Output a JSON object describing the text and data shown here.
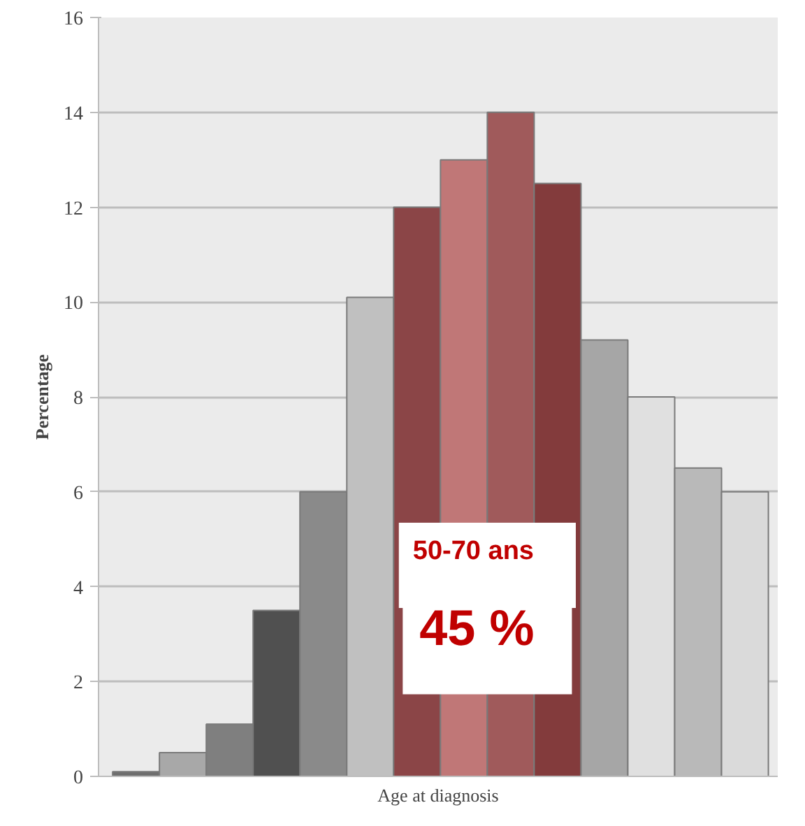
{
  "chart_data": {
    "type": "bar",
    "xlabel": "Age at diagnosis",
    "ylabel": "Percentage",
    "categories": [
      null,
      null,
      null,
      null,
      null,
      null,
      null,
      null,
      null,
      null,
      null,
      null,
      null,
      null
    ],
    "values": [
      0.1,
      0.5,
      1.1,
      3.5,
      6.0,
      10.1,
      12.0,
      13.0,
      14.0,
      12.5,
      9.2,
      8.0,
      6.5,
      6.0
    ],
    "colors": [
      "#6e6e6e",
      "#a8a8a8",
      "#7f7f7f",
      "#505050",
      "#8a8a8a",
      "#c0c0c0",
      "#8b4547",
      "#c07777",
      "#a05a5b",
      "#833b3c",
      "#a6a6a6",
      "#e0e0e0",
      "#b9b9b9",
      "#dadada"
    ],
    "ylim": [
      0,
      16
    ],
    "yticks": [
      0,
      2,
      4,
      6,
      8,
      10,
      12,
      14,
      16
    ],
    "grid": "y",
    "annotations": [
      "50-70 ans",
      "45 %"
    ]
  }
}
